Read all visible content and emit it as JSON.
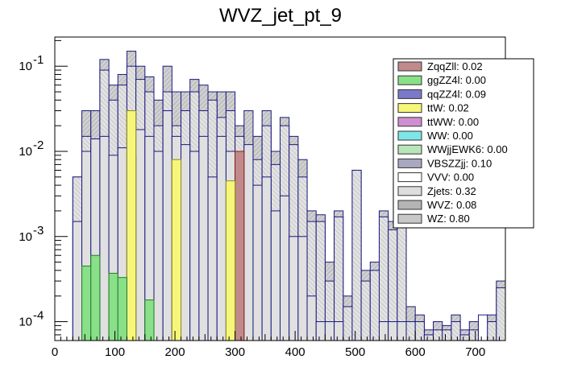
{
  "chart_data": {
    "type": "bar",
    "title": "WVZ_jet_pt_9",
    "xlabel": "",
    "ylabel": "",
    "xlim": [
      0,
      750
    ],
    "ylim": [
      6e-05,
      0.22
    ],
    "yscale": "log",
    "bin_width": 15,
    "x_ticks": [
      0,
      100,
      200,
      300,
      400,
      500,
      600,
      700
    ],
    "x_tick_labels": [
      "0",
      "100",
      "200",
      "300",
      "400",
      "500",
      "600",
      "700"
    ],
    "y_ticks": [
      0.0001,
      0.001,
      0.01,
      0.1
    ],
    "y_tick_labels": [
      "10^-4",
      "10^-3",
      "10^-2",
      "10^-1"
    ],
    "legend_position": "top-right",
    "legend": [
      {
        "name": "ZqqZll",
        "label": "ZqqZll: 0.02",
        "color": "#c08a8a"
      },
      {
        "name": "ggZZ4l",
        "label": "ggZZ4l: 0.00",
        "color": "#88e088"
      },
      {
        "name": "qqZZ4l",
        "label": "qqZZ4l: 0.09",
        "color": "#7a7ac8"
      },
      {
        "name": "ttW",
        "label": "ttW: 0.02",
        "color": "#f6f67a"
      },
      {
        "name": "ttWW",
        "label": "ttWW: 0.00",
        "color": "#cf8fcf"
      },
      {
        "name": "WW",
        "label": "WW: 0.00",
        "color": "#7ee6e6"
      },
      {
        "name": "WWjjEWK6",
        "label": "WWjjEWK6: 0.00",
        "color": "#b8e6b8"
      },
      {
        "name": "VBSZZjj",
        "label": "VBSZZjj: 0.10",
        "color": "#a8a8c0"
      },
      {
        "name": "VVV",
        "label": "VVV: 0.00",
        "color": "#ffffff"
      },
      {
        "name": "Zjets",
        "label": "Zjets: 0.32",
        "color": "#dddddd"
      },
      {
        "name": "WVZ",
        "label": "WVZ: 0.08",
        "color": "#b4b4b4"
      },
      {
        "name": "WZ",
        "label": "WZ: 0.80",
        "color": "#c8c8c8"
      }
    ],
    "stack_total": {
      "x_low": [
        30,
        45,
        60,
        75,
        90,
        105,
        120,
        135,
        150,
        165,
        180,
        195,
        210,
        225,
        240,
        255,
        270,
        285,
        300,
        315,
        330,
        345,
        360,
        375,
        390,
        405,
        420,
        435,
        450,
        465,
        480,
        495,
        510,
        525,
        540,
        555,
        570,
        585,
        600,
        615,
        630,
        645,
        660,
        675,
        690,
        705,
        720,
        735
      ],
      "values": [
        0.005,
        0.03,
        0.03,
        0.12,
        0.06,
        0.08,
        0.15,
        0.1,
        0.075,
        0.04,
        0.1,
        0.05,
        0.05,
        0.07,
        0.06,
        0.05,
        0.05,
        0.05,
        0.02,
        0.03,
        0.015,
        0.03,
        0.01,
        0.025,
        0.015,
        0.008,
        0.002,
        0.0018,
        0.0005,
        0.002,
        0.0002,
        0.006,
        0.0004,
        0.0005,
        0.002,
        0.0015,
        0.002,
        0.00015,
        0.00012,
        8e-05,
        0.0001,
        9e-05,
        0.00012,
        8e-05,
        0.0001,
        0.0001,
        0.00012,
        0.0003
      ]
    },
    "wz": {
      "x_low": [
        30,
        45,
        60,
        75,
        90,
        105,
        120,
        135,
        150,
        165,
        180,
        195,
        210,
        225,
        240,
        255,
        270,
        285,
        300,
        315,
        330,
        345,
        360,
        375,
        390,
        405,
        420,
        435,
        450,
        465,
        480,
        495,
        510,
        525,
        540,
        555,
        570,
        585,
        600,
        615,
        630,
        645,
        660,
        675,
        690,
        705,
        720,
        735
      ],
      "values": [
        0.005,
        0.015,
        0.012,
        0.09,
        0.04,
        0.06,
        0.1,
        0.07,
        0.05,
        0.02,
        0.05,
        0.02,
        0.03,
        0.05,
        0.03,
        0.04,
        0.025,
        0.03,
        0.015,
        0.01,
        0.008,
        0.02,
        0.007,
        0.02,
        0.012,
        0.005,
        0.0015,
        0.0015,
        0.0003,
        0.0017,
        0.00015,
        0.006,
        0.0003,
        0.0004,
        0.0017,
        0.0012,
        0.0017,
        0.0001,
        0.0001,
        7e-05,
        8e-05,
        8e-05,
        0.0001,
        7e-05,
        8e-05,
        0.0001,
        0.0001,
        0.00025
      ]
    },
    "zjets": {
      "x_low": [
        30,
        45,
        60,
        75,
        90,
        105,
        120,
        135,
        150,
        165,
        180,
        195,
        210,
        225,
        240,
        255,
        270,
        285,
        300,
        315,
        330,
        345,
        360,
        375,
        390,
        405,
        420,
        435,
        450,
        465,
        480,
        495,
        510,
        525,
        540,
        555,
        570,
        585,
        600,
        615,
        630,
        645,
        660,
        675,
        690,
        705,
        720,
        735
      ],
      "values": [
        0.0015,
        0.01,
        0.014,
        0.015,
        0.009,
        0.011,
        0.03,
        0.018,
        0.015,
        0.01,
        0.03,
        0.015,
        0.012,
        0.01,
        0.015,
        0.005,
        0.015,
        0.01,
        0.002,
        0.012,
        0.004,
        0.005,
        0.002,
        0.003,
        0.001,
        0.001,
        0.0002,
        0.0001,
        0.0001,
        0.0001,
        2e-05,
        1e-05,
        5e-05,
        4e-05,
        0.0001,
        0.0001,
        0.0001,
        2e-05,
        1e-05,
        1e-05,
        1e-05,
        1e-05,
        1e-05,
        1e-05,
        1e-05,
        1e-05,
        1e-05,
        1e-05
      ]
    },
    "zqqzll": [
      {
        "x_low": 120,
        "x_high": 135,
        "value": 0.009
      },
      {
        "x_low": 300,
        "x_high": 315,
        "value": 0.01
      }
    ],
    "ttw": [
      {
        "x_low": 120,
        "x_high": 135,
        "value": 0.03
      },
      {
        "x_low": 195,
        "x_high": 210,
        "value": 0.008
      },
      {
        "x_low": 285,
        "x_high": 300,
        "value": 0.0045
      }
    ],
    "ggzz4l": [
      {
        "x_low": 45,
        "x_high": 60,
        "value": 0.00045
      },
      {
        "x_low": 60,
        "x_high": 75,
        "value": 0.0006
      },
      {
        "x_low": 90,
        "x_high": 105,
        "value": 0.00037
      },
      {
        "x_low": 105,
        "x_high": 120,
        "value": 0.00033
      },
      {
        "x_low": 150,
        "x_high": 165,
        "value": 0.00018
      }
    ],
    "vvv": [
      {
        "x_low": 705,
        "x_high": 720,
        "value": 0.00012
      }
    ]
  }
}
